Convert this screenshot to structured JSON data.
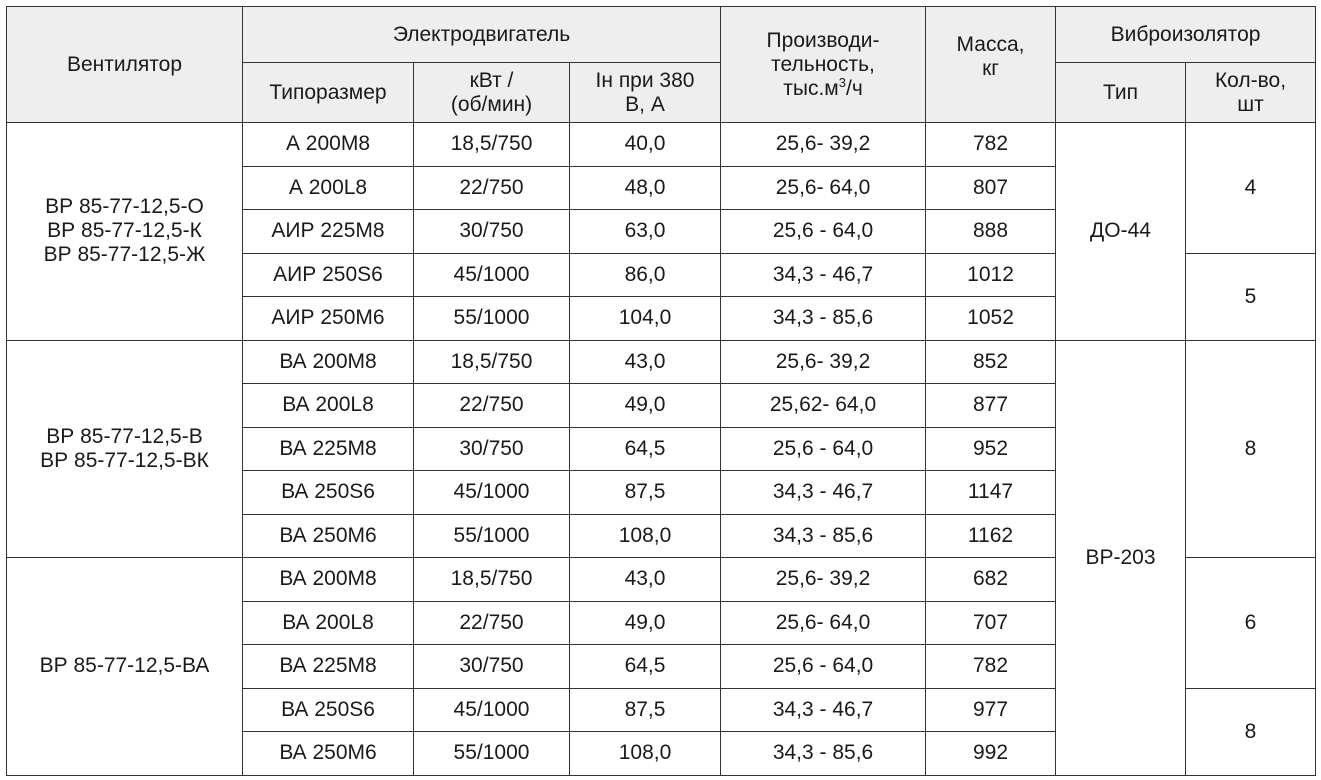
{
  "header": {
    "fan": "Вентилятор",
    "motor": "Электродвигатель",
    "motor_size": "Типоразмер",
    "power_l1": "кВт /",
    "power_l2": "(об/мин)",
    "current_l1": "Iн при 380",
    "current_l2": "В, А",
    "capacity_l1": "Производи-",
    "capacity_l2": "тельность,",
    "capacity_l3a": "тыс.м",
    "capacity_l3sup": "3",
    "capacity_l3b": "/ч",
    "mass_l1": "Масса,",
    "mass_l2": "кг",
    "isolator": "Виброизолятор",
    "iso_type": "Тип",
    "iso_qty_l1": "Кол-во,",
    "iso_qty_l2": "шт"
  },
  "groups": [
    {
      "fans": [
        "ВР 85-77-12,5-О",
        "ВР 85-77-12,5-К",
        "ВР 85-77-12,5-Ж"
      ],
      "rows": [
        {
          "motor": "А 200М8",
          "power": "18,5/750",
          "current": "40,0",
          "capacity": "25,6- 39,2",
          "mass": "782"
        },
        {
          "motor": "А 200L8",
          "power": "22/750",
          "current": "48,0",
          "capacity": "25,6- 64,0",
          "mass": "807"
        },
        {
          "motor": "АИР 225М8",
          "power": "30/750",
          "current": "63,0",
          "capacity": "25,6 - 64,0",
          "mass": "888"
        },
        {
          "motor": "АИР 250S6",
          "power": "45/1000",
          "current": "86,0",
          "capacity": "34,3 - 46,7",
          "mass": "1012"
        },
        {
          "motor": "АИР 250М6",
          "power": "55/1000",
          "current": "104,0",
          "capacity": "34,3 - 85,6",
          "mass": "1052"
        }
      ]
    },
    {
      "fans": [
        "ВР 85-77-12,5-В",
        "ВР 85-77-12,5-ВК"
      ],
      "rows": [
        {
          "motor": "ВА 200М8",
          "power": "18,5/750",
          "current": "43,0",
          "capacity": "25,6- 39,2",
          "mass": "852"
        },
        {
          "motor": "ВА 200L8",
          "power": "22/750",
          "current": "49,0",
          "capacity": "25,62- 64,0",
          "mass": "877"
        },
        {
          "motor": "ВА 225М8",
          "power": "30/750",
          "current": "64,5",
          "capacity": "25,6 - 64,0",
          "mass": "952"
        },
        {
          "motor": "ВА 250S6",
          "power": "45/1000",
          "current": "87,5",
          "capacity": "34,3 - 46,7",
          "mass": "1147"
        },
        {
          "motor": "ВА  250М6",
          "power": "55/1000",
          "current": "108,0",
          "capacity": "34,3 - 85,6",
          "mass": "1162"
        }
      ]
    },
    {
      "fans": [
        "ВР 85-77-12,5-ВА"
      ],
      "rows": [
        {
          "motor": "ВА 200М8",
          "power": "18,5/750",
          "current": "43,0",
          "capacity": "25,6- 39,2",
          "mass": "682"
        },
        {
          "motor": "ВА 200L8",
          "power": "22/750",
          "current": "49,0",
          "capacity": "25,6- 64,0",
          "mass": "707"
        },
        {
          "motor": "ВА 225М8",
          "power": "30/750",
          "current": "64,5",
          "capacity": "25,6 - 64,0",
          "mass": "782"
        },
        {
          "motor": "ВА 250S6",
          "power": "45/1000",
          "current": "87,5",
          "capacity": "34,3 - 46,7",
          "mass": "977"
        },
        {
          "motor": "ВА  250М6",
          "power": "55/1000",
          "current": "108,0",
          "capacity": "34,3 - 85,6",
          "mass": "992"
        }
      ]
    }
  ],
  "isolator_types": [
    "ДО-44",
    "ВР-203"
  ],
  "isolator_qty": [
    "4",
    "5",
    "8",
    "6",
    "8"
  ]
}
